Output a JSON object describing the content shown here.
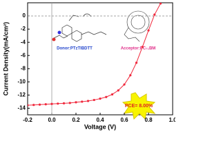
{
  "chart_data": {
    "type": "line",
    "x_label": "Voltage (V)",
    "y_label": "Current Density(mA/cm²)",
    "donor_label": "Donor:PTzTIBDTT",
    "acceptor_label": "Acceptor:PC₇₁BM",
    "annotation": "PCE= 8.00%",
    "x": [
      -0.2,
      -0.15,
      -0.1,
      -0.05,
      0,
      0.05,
      0.1,
      0.15,
      0.2,
      0.25,
      0.3,
      0.35,
      0.4,
      0.45,
      0.5,
      0.55,
      0.6,
      0.65,
      0.7,
      0.75,
      0.8,
      0.85,
      0.9
    ],
    "series": [
      {
        "name": "PTzTIBDTT:PC71BM",
        "color": "#f0283c",
        "values": [
          -13.55,
          -13.5,
          -13.45,
          -13.4,
          -13.35,
          -13.3,
          -13.25,
          -13.2,
          -13.1,
          -13.0,
          -12.9,
          -12.75,
          -12.55,
          -12.3,
          -11.9,
          -11.3,
          -10.4,
          -9.0,
          -7.1,
          -4.7,
          -2.2,
          0.2,
          1.9
        ]
      }
    ],
    "xlim": [
      -0.2,
      1.0
    ],
    "ylim": [
      -15,
      2
    ],
    "xticks": [
      -0.2,
      {
        "value": 0,
        "label": "0.0"
      },
      0.2,
      0.4,
      0.6,
      0.8,
      {
        "value": 1,
        "label": "1.0"
      }
    ],
    "yticks": [
      0,
      -2,
      -4,
      -6,
      -8,
      -10,
      -12,
      -14
    ]
  }
}
